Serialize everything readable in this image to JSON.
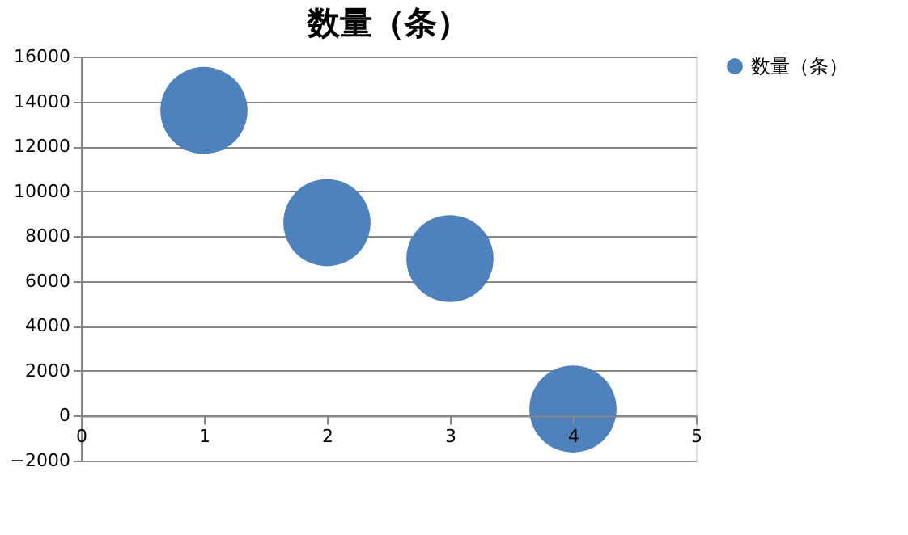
{
  "chart_data": {
    "type": "bubble",
    "title": "数量（条）",
    "x": [
      1,
      2,
      3,
      4
    ],
    "series": [
      {
        "name": "数量（条）",
        "color": "#4f81bd",
        "values": [
          13600,
          8600,
          7000,
          300
        ],
        "sizes": [
          1,
          1,
          1,
          1
        ]
      }
    ],
    "xlim": [
      0,
      5
    ],
    "xticks": [
      0,
      1,
      2,
      3,
      4,
      5
    ],
    "ylim": [
      -2000,
      16000
    ],
    "yticks": [
      -2000,
      0,
      2000,
      4000,
      6000,
      8000,
      10000,
      12000,
      14000,
      16000
    ],
    "grid": "y",
    "legend": "right"
  }
}
